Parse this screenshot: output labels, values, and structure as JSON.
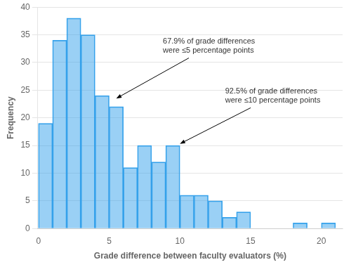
{
  "chart_data": {
    "type": "histogram",
    "bins": [
      0,
      1,
      2,
      3,
      4,
      5,
      6,
      7,
      8,
      9,
      10,
      11,
      12,
      13,
      14,
      15,
      16,
      17,
      18,
      19,
      20,
      21
    ],
    "values": [
      19,
      34,
      38,
      35,
      24,
      22,
      11,
      15,
      12,
      15,
      6,
      6,
      5,
      2,
      3,
      0,
      0,
      0,
      1,
      0,
      1
    ],
    "xlim": [
      -0.05,
      21.5
    ],
    "ylim": [
      0,
      40
    ],
    "xticks": [
      0,
      5,
      10,
      15,
      20
    ],
    "yticks": [
      0,
      5,
      10,
      15,
      20,
      25,
      30,
      35,
      40
    ],
    "xlabel": "Grade difference between faculty evaluators (%)",
    "ylabel": "Frequency",
    "grid": "y",
    "annotations": [
      {
        "text": "67.9% of grade differences\nwere ≤5 percentage points",
        "xy": [
          5.5,
          23.5
        ],
        "xytext": [
          8.8,
          34.5
        ]
      },
      {
        "text": "92.5% of grade differences\nwere ≤10 percentage points",
        "xy": [
          10.0,
          15.3
        ],
        "xytext": [
          13.2,
          25.5
        ]
      }
    ]
  }
}
